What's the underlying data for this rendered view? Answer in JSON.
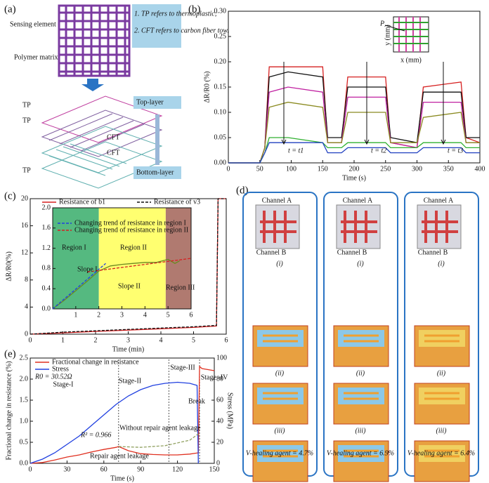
{
  "panel_a": {
    "label": "(a)",
    "sensing_element": "Sensing element",
    "polymer_matrix": "Polymer matrix",
    "notes": [
      "1. TP refers to thermoplastic;",
      "2. CFT refers to carbon fiber tow."
    ],
    "tp_labels": [
      "TP",
      "TP",
      "TP"
    ],
    "cft_labels": [
      "CFT",
      "CFT"
    ],
    "top": "Top-layer",
    "bottom": "Bottom-layer"
  },
  "panel_b": {
    "label": "(b)",
    "inset": {
      "point": "P",
      "xlabel": "x (mm)",
      "ylabel": "y (mm)"
    }
  },
  "panel_c": {
    "label": "(c)"
  },
  "panel_e": {
    "label": "(e)"
  },
  "panel_d": {
    "label": "(d)",
    "columns": [
      {
        "channel_a": "Channel A",
        "channel_b": "Channel B",
        "rows": [
          "(i)",
          "(ii)",
          "(iii)",
          "(iv)"
        ],
        "volume": "V-healing agent = 4.7%"
      },
      {
        "channel_a": "Channel A",
        "channel_b": "Channel B",
        "rows": [
          "(i)",
          "(ii)",
          "(iii)",
          "(iv)"
        ],
        "volume": "V-healing agent = 6.9%"
      },
      {
        "channel_a": "Channel A",
        "channel_b": "Channel B",
        "rows": [
          "(i)",
          "(ii)",
          "(iii)",
          "(iv)"
        ],
        "volume": "V-healing agent = 6.4%"
      }
    ]
  },
  "chart_data": [
    {
      "type": "line",
      "xlabel": "Time (s)",
      "ylabel": "ΔR/R0 (%)",
      "xlim": [
        0,
        400
      ],
      "xticks": [
        0,
        50,
        100,
        150,
        200,
        250,
        300,
        350,
        400
      ],
      "ylim": [
        0,
        0.3
      ],
      "yticks": [
        {
          "value": 0,
          "label": "0.00"
        },
        {
          "value": 0.05,
          "label": "0.05"
        },
        {
          "value": 0.1,
          "label": "0.10"
        },
        {
          "value": 0.15,
          "label": "0.15"
        },
        {
          "value": 0.2,
          "label": "0.20"
        },
        {
          "value": 0.25,
          "label": "0.25"
        },
        {
          "value": 0.3,
          "label": "0.30"
        }
      ],
      "annotations": [
        "t = t1",
        "t = t2",
        "t = t3"
      ],
      "x": [
        0,
        50,
        58,
        65,
        95,
        150,
        158,
        180,
        190,
        250,
        258,
        300,
        310,
        370,
        378,
        400
      ],
      "series": [
        {
          "color": "#d62020",
          "values": [
            0,
            0,
            0.03,
            0.19,
            0.19,
            0.19,
            0.04,
            0.04,
            0.17,
            0.17,
            0.04,
            0.03,
            0.15,
            0.16,
            0.05,
            0.04
          ]
        },
        {
          "color": "#111111",
          "values": [
            0,
            0,
            0.03,
            0.17,
            0.18,
            0.17,
            0.05,
            0.05,
            0.15,
            0.15,
            0.05,
            0.04,
            0.14,
            0.14,
            0.05,
            0.05
          ]
        },
        {
          "color": "#c020a0",
          "values": [
            0,
            0,
            0.03,
            0.14,
            0.15,
            0.14,
            0.04,
            0.04,
            0.13,
            0.13,
            0.04,
            0.03,
            0.12,
            0.12,
            0.04,
            0.04
          ]
        },
        {
          "color": "#8a8a20",
          "values": [
            0,
            0,
            0.03,
            0.11,
            0.12,
            0.11,
            0.04,
            0.04,
            0.1,
            0.1,
            0.04,
            0.04,
            0.09,
            0.1,
            0.04,
            0.04
          ]
        },
        {
          "color": "#30b030",
          "values": [
            0,
            0,
            0.02,
            0.05,
            0.05,
            0.04,
            0.03,
            0.03,
            0.04,
            0.04,
            0.03,
            0.03,
            0.04,
            0.04,
            0.03,
            0.03
          ]
        },
        {
          "color": "#2040c0",
          "values": [
            0,
            0,
            0.02,
            0.04,
            0.04,
            0.04,
            0.02,
            0.02,
            0.03,
            0.03,
            0.02,
            0.02,
            0.03,
            0.03,
            0.02,
            0.02
          ]
        }
      ]
    },
    {
      "type": "line",
      "xlabel": "Time (min)",
      "ylabel": "ΔR/R0(%)",
      "xlim": [
        0,
        6
      ],
      "xticks": [
        0,
        1,
        2,
        3,
        4,
        5,
        6
      ],
      "ylim": [
        0,
        20
      ],
      "yticks": [
        0,
        4,
        8,
        12,
        16,
        20
      ],
      "x": [
        0,
        1,
        2,
        3,
        4,
        5,
        5.7,
        5.75,
        5.8,
        6
      ],
      "series": [
        {
          "name": "Resistance of b1",
          "color": "#d62020",
          "dash": false,
          "values": [
            0,
            0.2,
            0.4,
            0.6,
            0.8,
            1.0,
            1.2,
            20,
            20,
            20
          ]
        },
        {
          "name": "Resistance of v3",
          "color": "#111111",
          "dash": true,
          "values": [
            0,
            0.3,
            0.5,
            0.7,
            0.9,
            1.1,
            1.3,
            20,
            20,
            20
          ]
        }
      ]
    },
    {
      "type": "line",
      "xlim": [
        0,
        6
      ],
      "xticks": [
        1,
        2,
        3,
        4,
        5,
        6
      ],
      "ylim": [
        0,
        2.0
      ],
      "yticks": [
        {
          "value": 0,
          "label": "0.0"
        },
        {
          "value": 0.4,
          "label": "0.4"
        },
        {
          "value": 0.8,
          "label": "0.8"
        },
        {
          "value": 1.2,
          "label": "1.2"
        },
        {
          "value": 1.6,
          "label": "1.6"
        },
        {
          "value": 2.0,
          "label": "2.0"
        }
      ],
      "annotations": [
        "Region I",
        "Region II",
        "Region III",
        "Slope I",
        "Slope II"
      ],
      "series": [
        {
          "color": "#6a8a20",
          "dash": false,
          "x": [
            0,
            0.5,
            1,
            1.5,
            2,
            2.5,
            3,
            3.5,
            4,
            4.5,
            5,
            5.3,
            5.5
          ],
          "values": [
            0,
            0.17,
            0.36,
            0.55,
            0.75,
            0.85,
            0.88,
            0.9,
            0.92,
            0.92,
            0.98,
            0.9,
            0.95
          ]
        },
        {
          "name": "Changing trend of resistance in region I",
          "color": "#2040e0",
          "dash": true,
          "x": [
            0,
            2.3
          ],
          "values": [
            0,
            0.9
          ]
        },
        {
          "name": "Changing trend of resistance in region II",
          "color": "#d62020",
          "dash": true,
          "x": [
            1.5,
            6
          ],
          "values": [
            0.73,
            1.0
          ]
        }
      ]
    },
    {
      "type": "line",
      "xlabel": "Time (s)",
      "ylabel": "Fractional change in resistance (%)",
      "y2label": "Stress (MPa)",
      "xlim": [
        0,
        150
      ],
      "xticks": [
        0,
        30,
        60,
        90,
        120,
        150
      ],
      "ylim": [
        0,
        2.5
      ],
      "yticks": [
        {
          "value": 0,
          "label": "0.0"
        },
        {
          "value": 0.5,
          "label": "0.5"
        },
        {
          "value": 1.0,
          "label": "1.0"
        },
        {
          "value": 1.5,
          "label": "1.5"
        },
        {
          "value": 2.0,
          "label": "2.0"
        },
        {
          "value": 2.5,
          "label": "2.5"
        }
      ],
      "y2lim": [
        0,
        100
      ],
      "y2ticks": [
        0,
        20,
        40,
        60,
        80,
        100
      ],
      "annotations": [
        "Stage-I",
        "Stage-II",
        "Stage-III",
        "Stage -IV",
        "R0 = 30.52Ω",
        "R² = 0.966",
        "Break",
        "Repair agent leakage",
        "Without repair agent leakage"
      ],
      "series": [
        {
          "name": "Fractional change in resistance",
          "color": "#e03020",
          "dash": false,
          "x": [
            0,
            10,
            20,
            30,
            40,
            50,
            60,
            70,
            72,
            80,
            90,
            100,
            110,
            120,
            130,
            137,
            138,
            140,
            150
          ],
          "values": [
            0,
            0.02,
            0.08,
            0.15,
            0.2,
            0.27,
            0.33,
            0.38,
            0.4,
            0.3,
            0.23,
            0.21,
            0.2,
            0.2,
            0.22,
            0.25,
            2.3,
            2.25,
            2.2
          ]
        },
        {
          "name": "Stress",
          "color": "#2040e0",
          "dash": false,
          "axis": "y2",
          "x": [
            0,
            10,
            20,
            30,
            40,
            50,
            60,
            70,
            80,
            90,
            100,
            110,
            120,
            130,
            136,
            137
          ],
          "values": [
            0,
            4,
            10,
            18,
            26,
            36,
            46,
            56,
            64,
            70,
            74,
            76,
            77,
            76,
            74,
            0
          ]
        },
        {
          "color": "#90a060",
          "dash": true,
          "x": [
            72,
            90,
            110,
            130,
            137
          ],
          "values": [
            0.4,
            0.38,
            0.42,
            0.55,
            0.7
          ]
        }
      ]
    }
  ]
}
